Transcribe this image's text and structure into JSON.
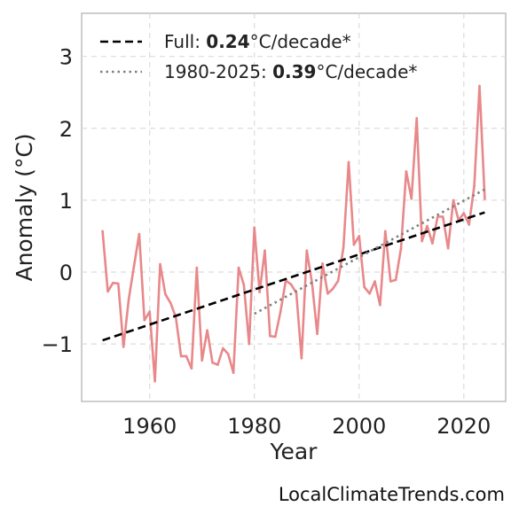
{
  "chart_data": {
    "type": "line",
    "xlabel": "Year",
    "ylabel": "Anomaly (°C)",
    "xlim": [
      1947,
      2028
    ],
    "ylim": [
      -1.8,
      3.6
    ],
    "xticks": [
      1960,
      1980,
      2000,
      2020
    ],
    "yticks": [
      -1,
      0,
      1,
      2,
      3
    ],
    "ytick_labels": [
      "−1",
      "0",
      "1",
      "2",
      "3"
    ],
    "grid": true,
    "legend_position": "top-left",
    "series": [
      {
        "name": "Anomaly",
        "color": "#e8888a",
        "x": [
          1951,
          1952,
          1953,
          1954,
          1955,
          1956,
          1957,
          1958,
          1959,
          1960,
          1961,
          1962,
          1963,
          1964,
          1965,
          1966,
          1967,
          1968,
          1969,
          1970,
          1971,
          1972,
          1973,
          1974,
          1975,
          1976,
          1977,
          1978,
          1979,
          1980,
          1981,
          1982,
          1983,
          1984,
          1985,
          1986,
          1987,
          1988,
          1989,
          1990,
          1991,
          1992,
          1993,
          1994,
          1995,
          1996,
          1997,
          1998,
          1999,
          2000,
          2001,
          2002,
          2003,
          2004,
          2005,
          2006,
          2007,
          2008,
          2009,
          2010,
          2011,
          2012,
          2013,
          2014,
          2015,
          2016,
          2017,
          2018,
          2019,
          2020,
          2021,
          2022,
          2023,
          2024
        ],
        "y": [
          0.57,
          -0.27,
          -0.15,
          -0.16,
          -1.04,
          -0.38,
          0.08,
          0.53,
          -0.67,
          -0.55,
          -1.52,
          0.11,
          -0.31,
          -0.43,
          -0.63,
          -1.17,
          -1.17,
          -1.34,
          0.06,
          -1.23,
          -0.81,
          -1.26,
          -1.29,
          -1.06,
          -1.14,
          -1.4,
          0.06,
          -0.18,
          -1.0,
          0.62,
          -0.28,
          0.3,
          -0.89,
          -0.9,
          -0.55,
          -0.12,
          -0.17,
          -0.29,
          -1.2,
          0.3,
          -0.15,
          -0.86,
          0.12,
          -0.3,
          -0.23,
          -0.12,
          0.34,
          1.53,
          0.38,
          0.5,
          -0.21,
          -0.3,
          -0.13,
          -0.46,
          0.57,
          -0.13,
          -0.11,
          0.33,
          1.4,
          1.02,
          2.14,
          0.43,
          0.64,
          0.4,
          0.77,
          0.77,
          0.33,
          1.0,
          0.72,
          0.82,
          0.66,
          1.2,
          2.59,
          1.02
        ]
      }
    ],
    "trends": [
      {
        "name": "Full",
        "slope_label": "0.24",
        "unit_label": "°C/decade*",
        "style": "dashed",
        "color": "#000000",
        "x": [
          1951,
          2024
        ],
        "y": [
          -0.95,
          0.83
        ]
      },
      {
        "name": "1980-2025",
        "slope_label": "0.39",
        "unit_label": "°C/decade*",
        "style": "dotted",
        "color": "#808080",
        "x": [
          1980,
          2024
        ],
        "y": [
          -0.58,
          1.15
        ]
      }
    ]
  },
  "source_text": "LocalClimateTrends.com"
}
